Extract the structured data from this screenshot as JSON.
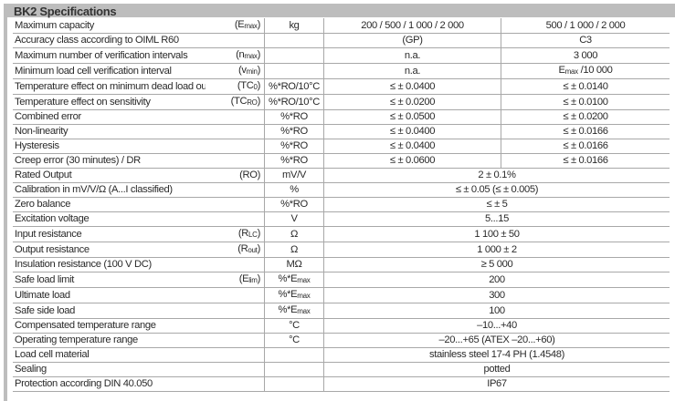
{
  "title": "BK2 Specifications",
  "colors": {
    "header_bar": "#bdbdbd",
    "grid": "#a8a8a8"
  },
  "rows": [
    {
      "label": "Maximum capacity",
      "symbol": [
        "(E",
        {
          "sub": "max"
        },
        ")"
      ],
      "unit": [
        "kg"
      ],
      "v1": [
        "200 / 500 / 1 000 / 2 000"
      ],
      "v2": [
        "500 / 1 000 / 2 000"
      ]
    },
    {
      "label": "Accuracy class according to OIML R60",
      "symbol": [],
      "unit": [],
      "v1": [
        "(GP)"
      ],
      "v2": [
        "C3"
      ]
    },
    {
      "label": "Maximum number of verification intervals",
      "symbol": [
        "(n",
        {
          "sub": "max"
        },
        ")"
      ],
      "unit": [],
      "v1": [
        "n.a."
      ],
      "v2": [
        "3 000"
      ]
    },
    {
      "label": "Minimum load cell verification interval",
      "symbol": [
        "(v",
        {
          "sub": "min"
        },
        ")"
      ],
      "unit": [],
      "v1": [
        "n.a."
      ],
      "v2": [
        "E",
        {
          "sub": "max"
        },
        " /10 000"
      ]
    },
    {
      "label": "Temperature effect on minimum dead load output",
      "symbol": [
        "(TC",
        {
          "sub": "0"
        },
        ")"
      ],
      "unit": [
        "%*RO/10°C"
      ],
      "v1": [
        "≤ ± 0.0400"
      ],
      "v2": [
        "≤ ± 0.0140"
      ]
    },
    {
      "label": "Temperature effect on sensitivity",
      "symbol": [
        "(TC",
        {
          "sub": "RO"
        },
        ")"
      ],
      "unit": [
        "%*RO/10°C"
      ],
      "v1": [
        "≤ ± 0.0200"
      ],
      "v2": [
        "≤ ± 0.0100"
      ]
    },
    {
      "label": "Combined error",
      "symbol": [],
      "unit": [
        "%*RO"
      ],
      "v1": [
        "≤ ± 0.0500"
      ],
      "v2": [
        "≤ ± 0.0200"
      ]
    },
    {
      "label": "Non-linearity",
      "symbol": [],
      "unit": [
        "%*RO"
      ],
      "v1": [
        "≤ ± 0.0400"
      ],
      "v2": [
        "≤ ± 0.0166"
      ]
    },
    {
      "label": "Hysteresis",
      "symbol": [],
      "unit": [
        "%*RO"
      ],
      "v1": [
        "≤ ± 0.0400"
      ],
      "v2": [
        "≤ ± 0.0166"
      ]
    },
    {
      "label": "Creep error (30 minutes) / DR",
      "symbol": [],
      "unit": [
        "%*RO"
      ],
      "v1": [
        "≤ ± 0.0600"
      ],
      "v2": [
        "≤ ± 0.0166"
      ]
    },
    {
      "label": "Rated Output",
      "symbol": [
        "(RO)"
      ],
      "unit": [
        "mV/V"
      ],
      "all": [
        "2 ± 0.1%"
      ]
    },
    {
      "label": "Calibration in mV/V/Ω (A...I classified)",
      "symbol": [],
      "unit": [
        "%"
      ],
      "all": [
        "≤ ± 0.05 (≤ ± 0.005)"
      ]
    },
    {
      "label": "Zero balance",
      "symbol": [],
      "unit": [
        "%*RO"
      ],
      "all": [
        "≤ ± 5"
      ]
    },
    {
      "label": "Excitation voltage",
      "symbol": [],
      "unit": [
        "V"
      ],
      "all": [
        "5...15"
      ]
    },
    {
      "label": "Input resistance",
      "symbol": [
        "(R",
        {
          "sub": "LC"
        },
        ")"
      ],
      "unit": [
        "Ω"
      ],
      "all": [
        "1 100 ± 50"
      ]
    },
    {
      "label": "Output resistance",
      "symbol": [
        "(R",
        {
          "sub": "out"
        },
        ")"
      ],
      "unit": [
        "Ω"
      ],
      "all": [
        "1 000 ± 2"
      ]
    },
    {
      "label": "Insulation resistance (100 V DC)",
      "symbol": [],
      "unit": [
        "MΩ"
      ],
      "all": [
        "≥ 5 000"
      ]
    },
    {
      "label": "Safe load limit",
      "symbol": [
        "(E",
        {
          "sub": "lim"
        },
        ")"
      ],
      "unit": [
        "%*E",
        {
          "sub": "max"
        }
      ],
      "all": [
        "200"
      ]
    },
    {
      "label": "Ultimate load",
      "symbol": [],
      "unit": [
        "%*E",
        {
          "sub": "max"
        }
      ],
      "all": [
        "300"
      ]
    },
    {
      "label": "Safe side load",
      "symbol": [],
      "unit": [
        "%*E",
        {
          "sub": "max"
        }
      ],
      "all": [
        "100"
      ]
    },
    {
      "label": "Compensated temperature range",
      "symbol": [],
      "unit": [
        "°C"
      ],
      "all": [
        "–10...+40"
      ]
    },
    {
      "label": "Operating temperature range",
      "symbol": [],
      "unit": [
        "°C"
      ],
      "all": [
        "–20...+65 (ATEX –20...+60)"
      ]
    },
    {
      "label": "Load cell material",
      "symbol": [],
      "unit": [],
      "all": [
        "stainless steel 17-4 PH (1.4548)"
      ]
    },
    {
      "label": "Sealing",
      "symbol": [],
      "unit": [],
      "all": [
        "potted"
      ]
    },
    {
      "label": "Protection according DIN 40.050",
      "symbol": [],
      "unit": [],
      "all": [
        "IP67"
      ]
    }
  ]
}
